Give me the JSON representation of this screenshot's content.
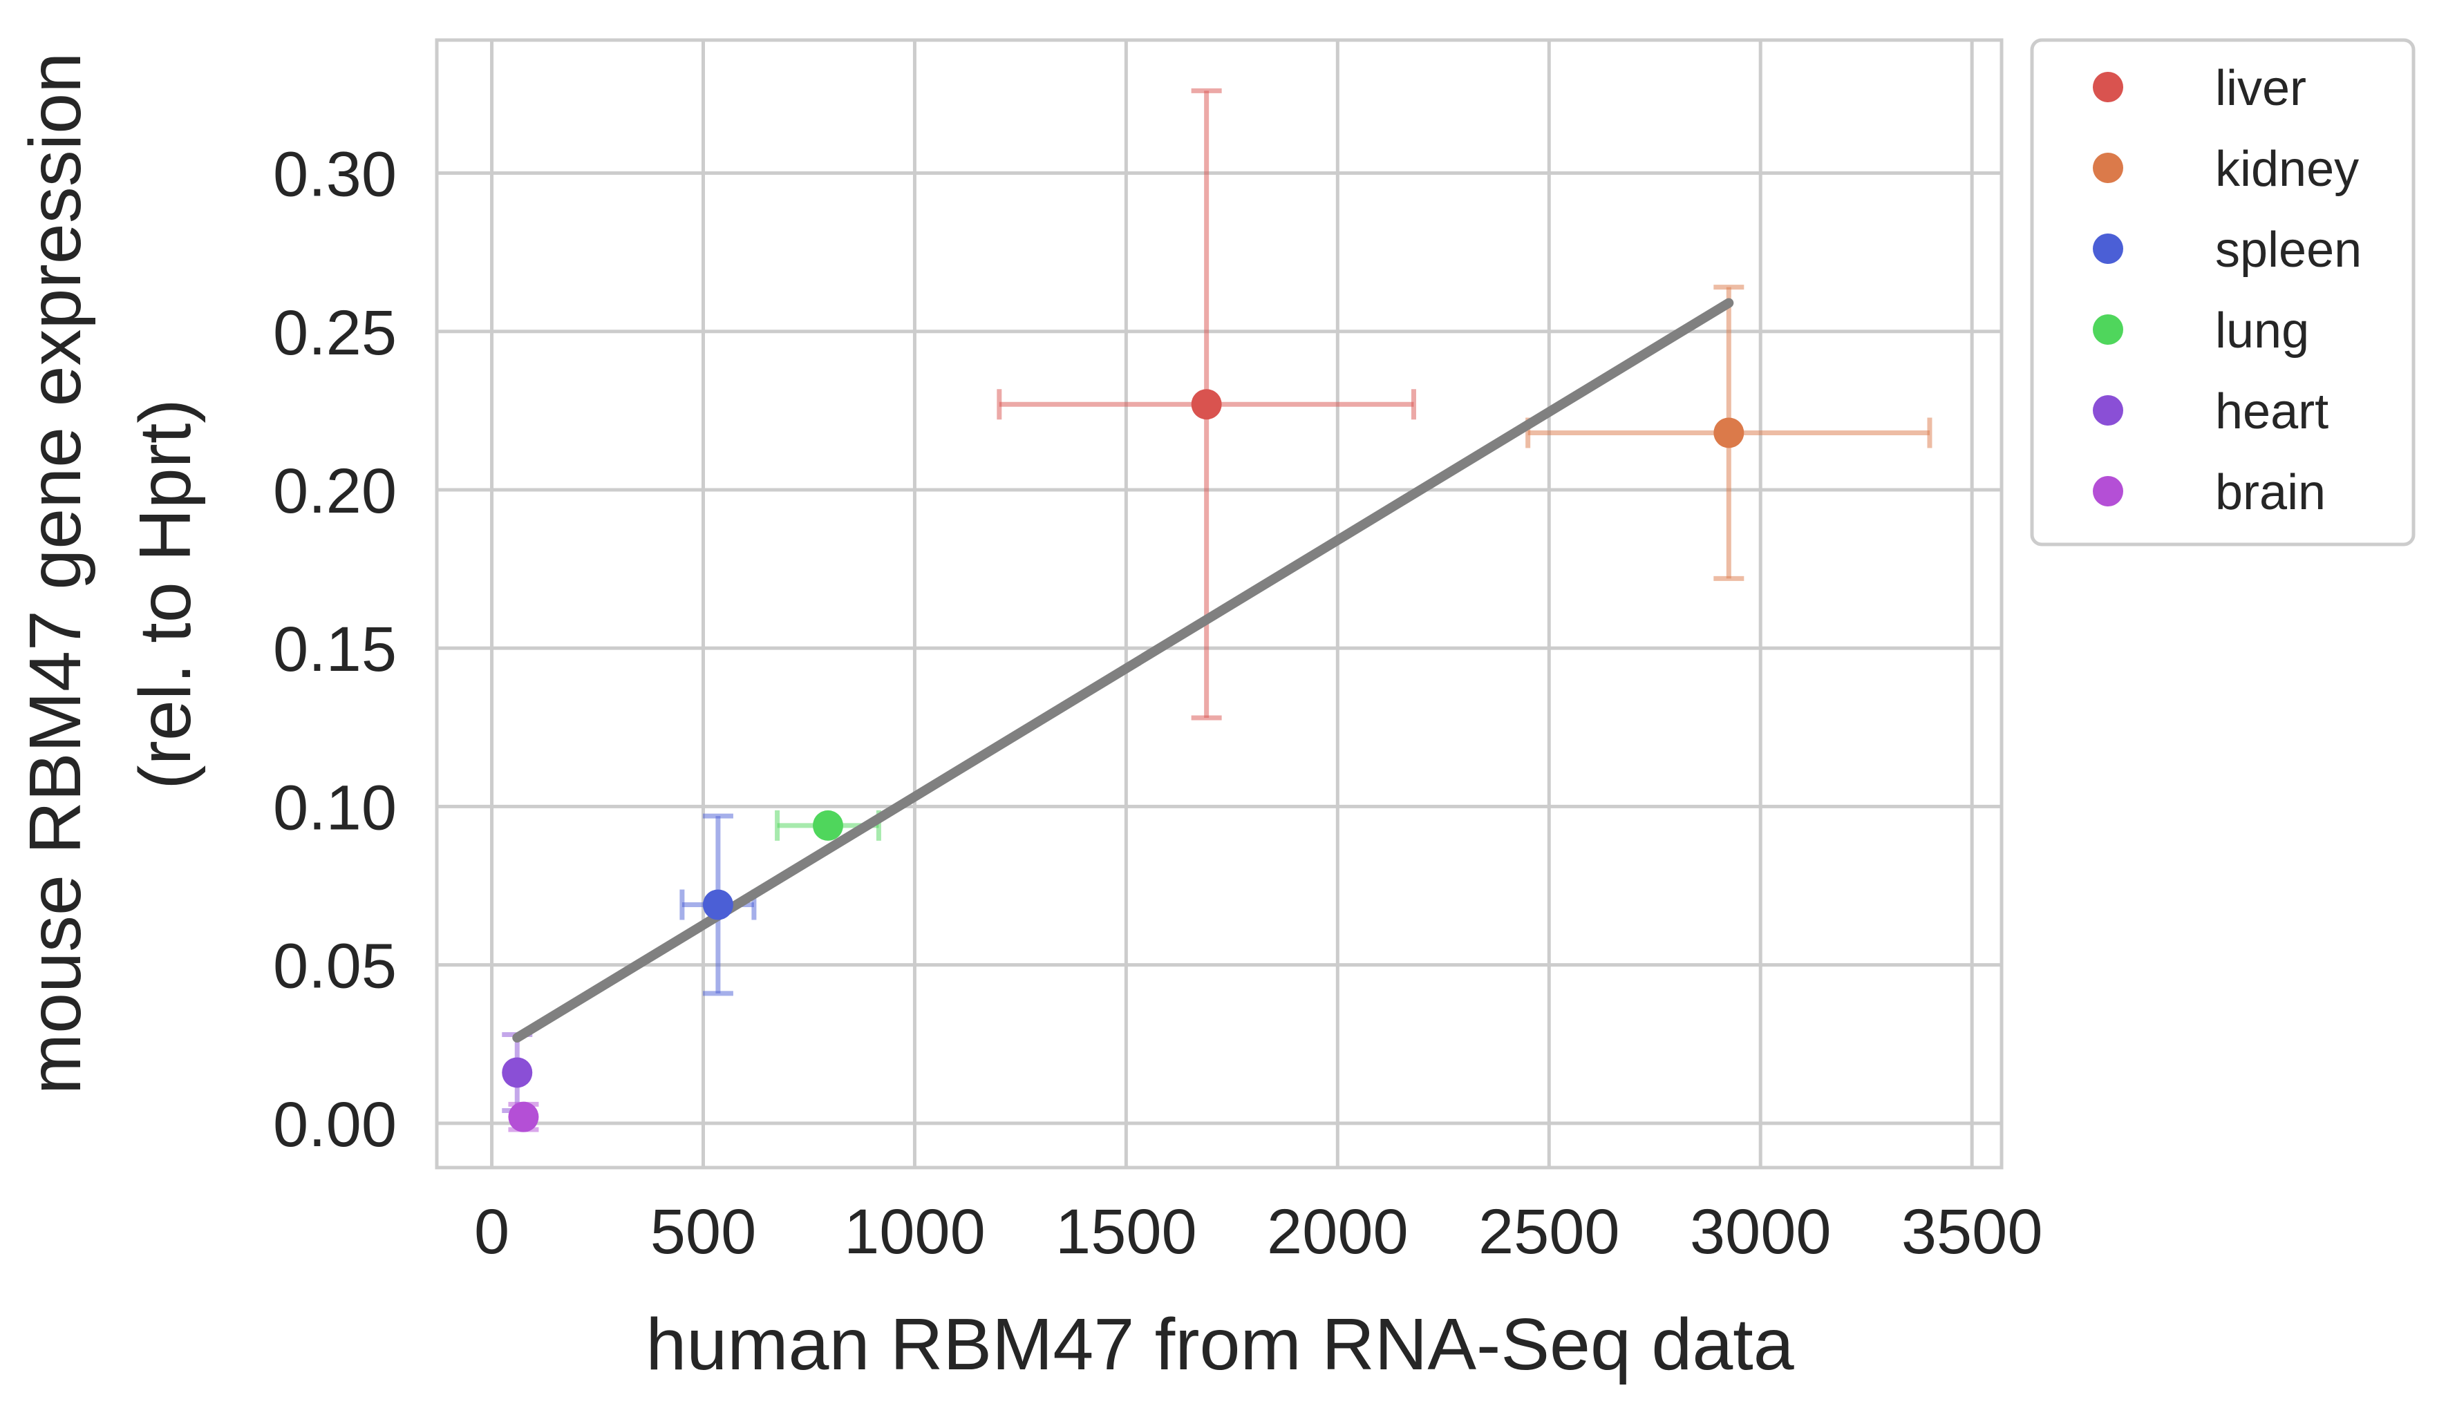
{
  "chart_data": {
    "type": "scatter",
    "title": "",
    "xlabel": "human RBM47 from RNA-Seq data",
    "ylabel_lines": [
      "mouse RBM47 gene expression",
      "(rel. to Hprt)"
    ],
    "xlim": [
      -130,
      3570
    ],
    "ylim": [
      -0.014,
      0.342
    ],
    "xticks": [
      0,
      500,
      1000,
      1500,
      2000,
      2500,
      3000,
      3500
    ],
    "xtick_labels": [
      "0",
      "500",
      "1000",
      "1500",
      "2000",
      "2500",
      "3000",
      "3500"
    ],
    "yticks": [
      0.0,
      0.05,
      0.1,
      0.15,
      0.2,
      0.25,
      0.3
    ],
    "ytick_labels": [
      "0.00",
      "0.05",
      "0.10",
      "0.15",
      "0.20",
      "0.25",
      "0.30"
    ],
    "grid": true,
    "legend_position": "outside-right-top",
    "series": [
      {
        "name": "liver",
        "color": "#d9534f",
        "x": 1690,
        "y": 0.227,
        "xerr": 490,
        "yerr": 0.099
      },
      {
        "name": "kidney",
        "color": "#db7a4a",
        "x": 2925,
        "y": 0.218,
        "xerr": 475,
        "yerr": 0.046
      },
      {
        "name": "spleen",
        "color": "#4b5fd6",
        "x": 535,
        "y": 0.069,
        "xerr": 85,
        "yerr": 0.028
      },
      {
        "name": "lung",
        "color": "#4fd65c",
        "x": 795,
        "y": 0.094,
        "xerr": 120,
        "yerr": 0.0
      },
      {
        "name": "heart",
        "color": "#8a4fd6",
        "x": 60,
        "y": 0.016,
        "xerr": 0,
        "yerr": 0.012
      },
      {
        "name": "brain",
        "color": "#b44fd6",
        "x": 75,
        "y": 0.002,
        "xerr": 0,
        "yerr": 0.004
      }
    ],
    "fit_line": {
      "color": "#808080",
      "x": [
        60,
        2925
      ],
      "y": [
        0.027,
        0.259
      ]
    }
  }
}
